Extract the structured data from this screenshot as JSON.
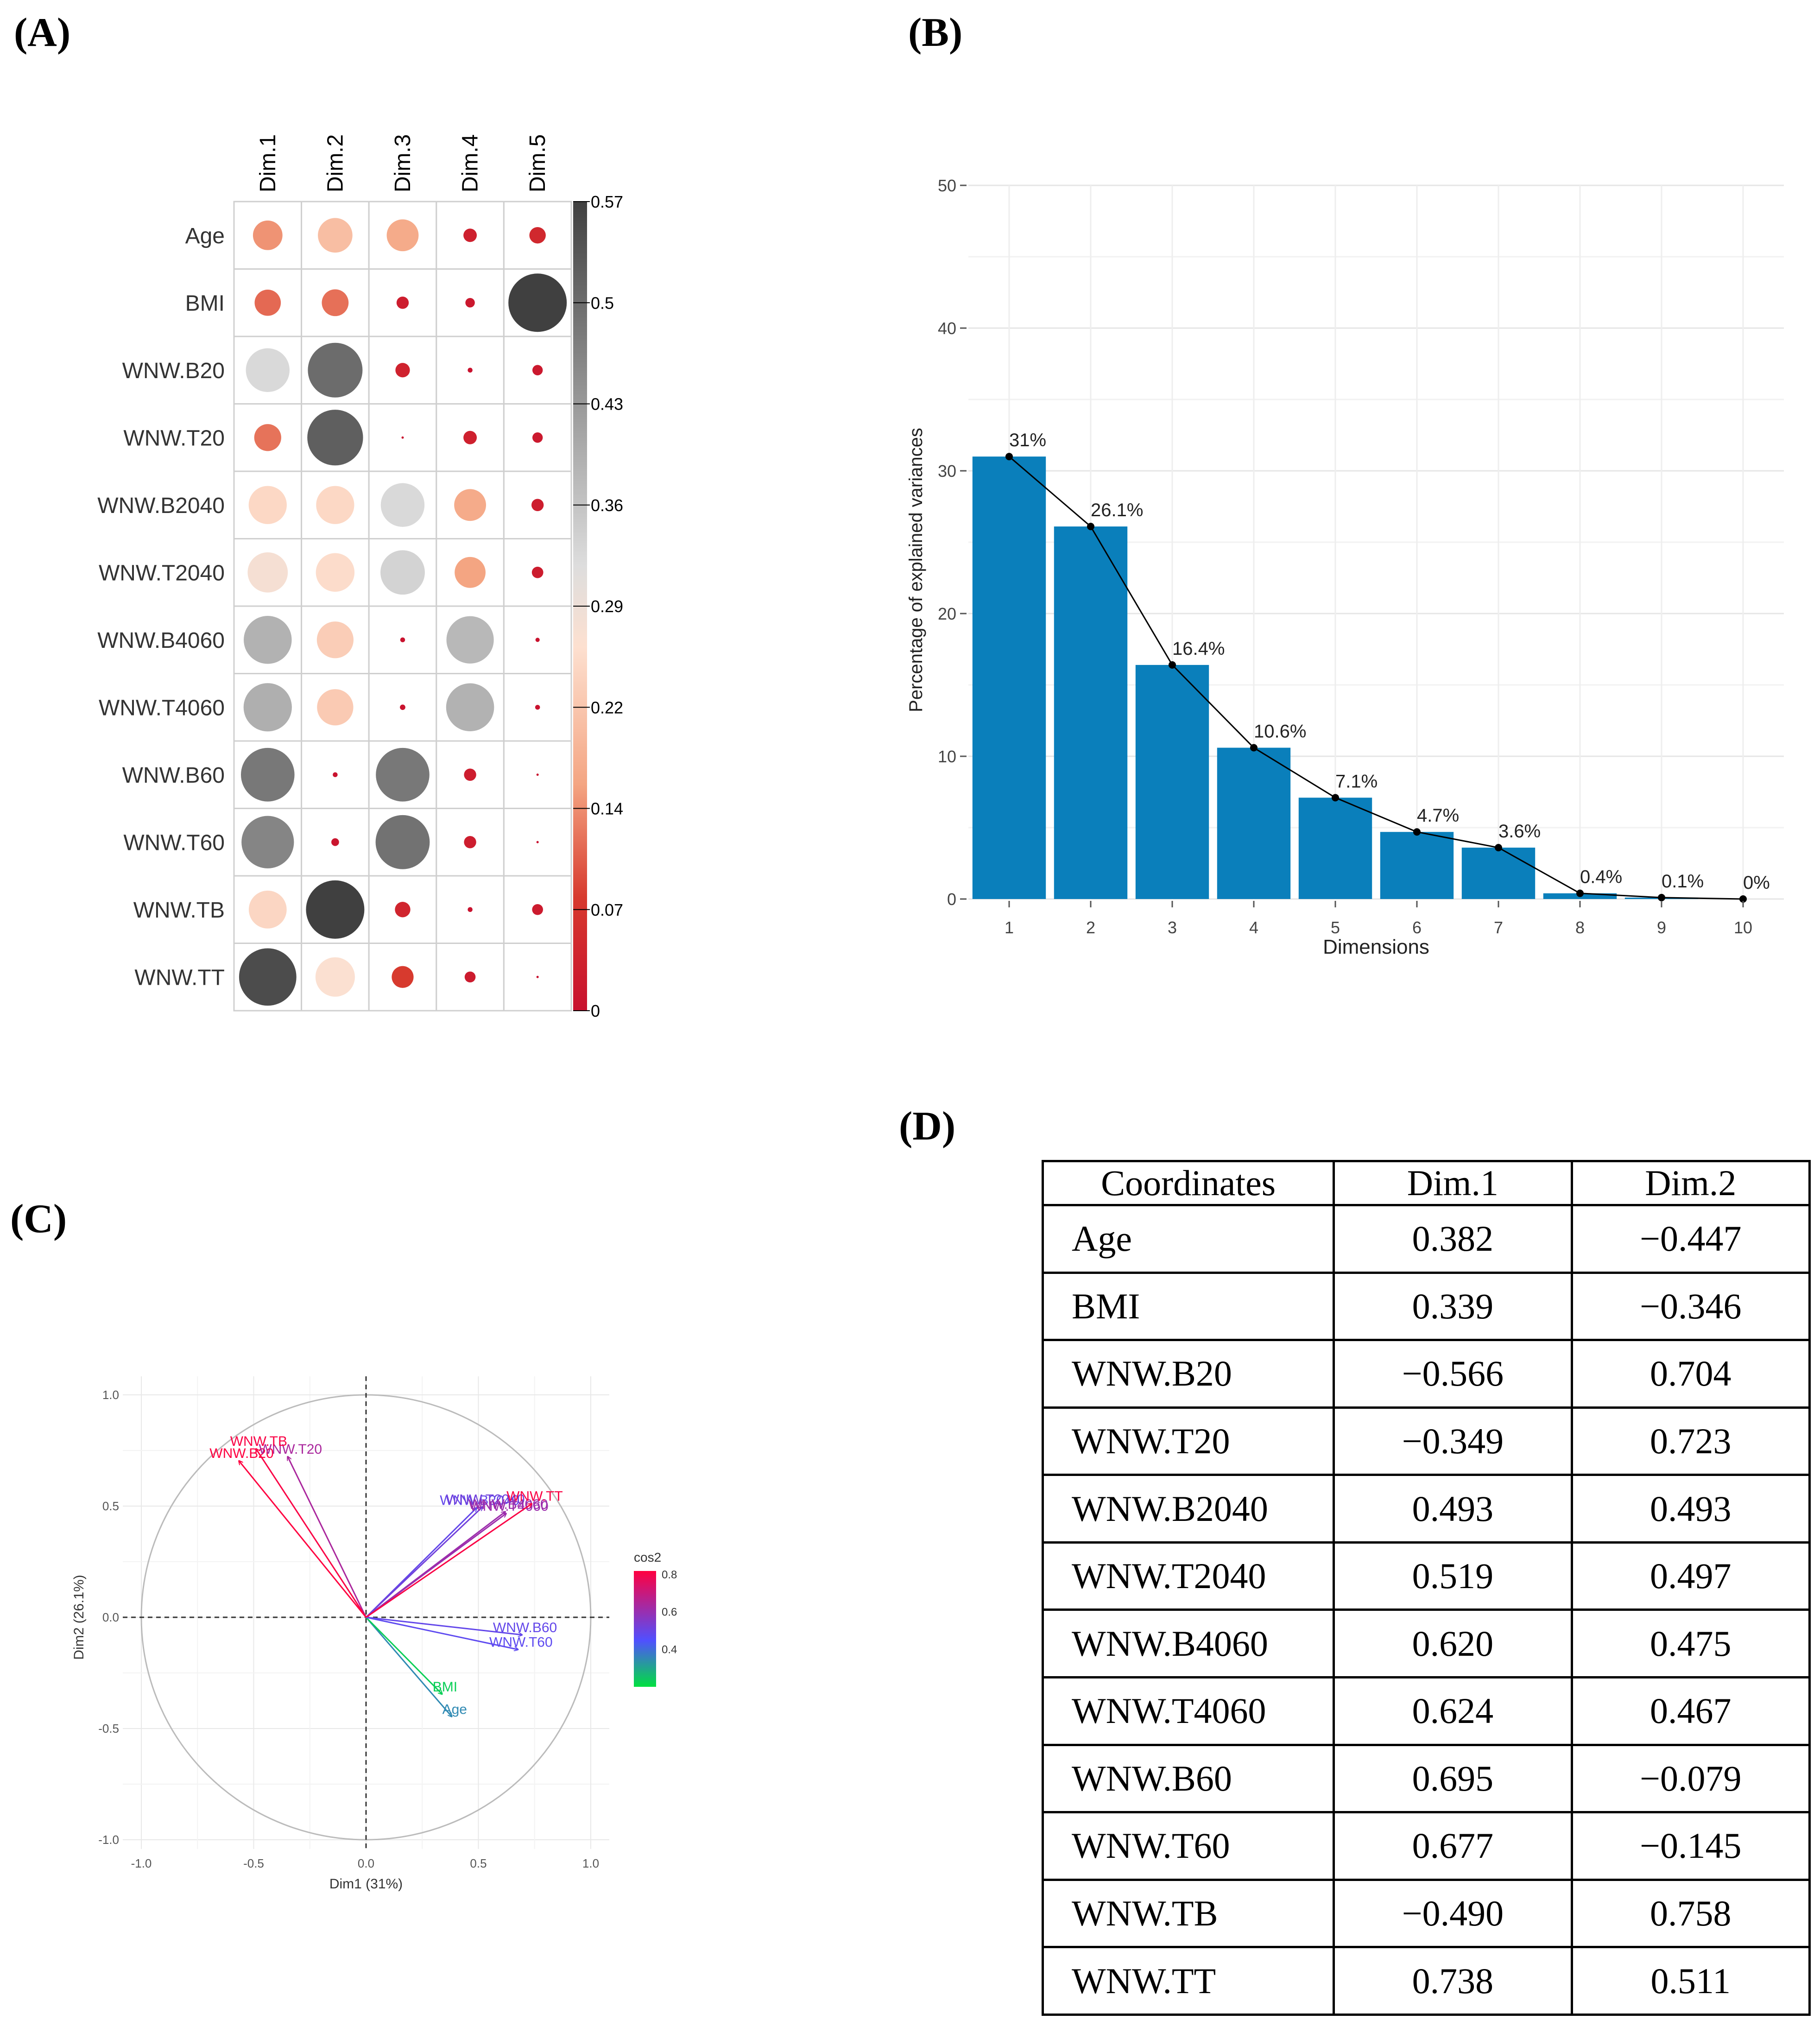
{
  "panels": {
    "a": "(A)",
    "b": "(B)",
    "c": "(C)",
    "d": "(D)"
  },
  "colors": {
    "bar": "#0a7fbb",
    "neg": "#c8102e",
    "legend_low": "#00e040",
    "legend_mid": "#5050ff",
    "legend_high": "#ff0040"
  },
  "chart_data": [
    {
      "type": "heatmap",
      "id": "A",
      "columns": [
        "Dim.1",
        "Dim.2",
        "Dim.3",
        "Dim.4",
        "Dim.5"
      ],
      "rows": [
        "Age",
        "BMI",
        "WNW.B20",
        "WNW.T20",
        "WNW.B2040",
        "WNW.T2040",
        "WNW.B4060",
        "WNW.T4060",
        "WNW.B60",
        "WNW.T60",
        "WNW.TB",
        "WNW.TT"
      ],
      "values": [
        [
          0.146,
          0.2,
          0.17,
          0.03,
          0.045
        ],
        [
          0.115,
          0.12,
          0.025,
          0.015,
          0.57
        ],
        [
          0.32,
          0.5,
          0.035,
          0.004,
          0.018
        ],
        [
          0.122,
          0.52,
          0.0,
          0.03,
          0.018
        ],
        [
          0.243,
          0.243,
          0.32,
          0.17,
          0.025
        ],
        [
          0.27,
          0.25,
          0.33,
          0.16,
          0.022
        ],
        [
          0.385,
          0.225,
          0.004,
          0.375,
          0.003
        ],
        [
          0.39,
          0.22,
          0.005,
          0.385,
          0.004
        ],
        [
          0.48,
          0.004,
          0.48,
          0.025,
          0.0
        ],
        [
          0.46,
          0.01,
          0.49,
          0.025,
          0.0
        ],
        [
          0.24,
          0.57,
          0.04,
          0.004,
          0.02
        ],
        [
          0.55,
          0.26,
          0.08,
          0.02,
          0.0
        ]
      ],
      "legend_ticks": [
        "0.57",
        "0.5",
        "0.43",
        "0.36",
        "0.29",
        "0.22",
        "0.14",
        "0.07",
        "0"
      ],
      "legend_range": [
        0,
        0.57
      ]
    },
    {
      "type": "bar",
      "id": "B",
      "categories": [
        "1",
        "2",
        "3",
        "4",
        "5",
        "6",
        "7",
        "8",
        "9",
        "10"
      ],
      "values": [
        31,
        26.1,
        16.4,
        10.6,
        7.1,
        4.7,
        3.6,
        0.4,
        0.1,
        0
      ],
      "labels": [
        "31%",
        "26.1%",
        "16.4%",
        "10.6%",
        "7.1%",
        "4.7%",
        "3.6%",
        "0.4%",
        "0.1%",
        "0%"
      ],
      "xlabel": "Dimensions",
      "ylabel": "Percentage of explained variances",
      "ylim": [
        0,
        50
      ],
      "yticks": [
        "0",
        "10",
        "20",
        "30",
        "40",
        "50"
      ],
      "grid": true
    },
    {
      "type": "scatter",
      "id": "C",
      "subtype": "pca-variable-arrows",
      "xlabel": "Dim1 (31%)",
      "ylabel": "Dim2 (26.1%)",
      "xlim": [
        -1.0,
        1.0
      ],
      "ylim": [
        -1.0,
        1.0
      ],
      "xticks": [
        "-1.0",
        "-0.5",
        "0.0",
        "0.5",
        "1.0"
      ],
      "yticks": [
        "-1.0",
        "-0.5",
        "0.0",
        "0.5",
        "1.0"
      ],
      "legend_title": "cos2",
      "legend_ticks": [
        "0.8",
        "0.6",
        "0.4"
      ],
      "variables": [
        {
          "name": "Age",
          "x": 0.382,
          "y": -0.447,
          "cos2": 0.35
        },
        {
          "name": "BMI",
          "x": 0.339,
          "y": -0.346,
          "cos2": 0.23
        },
        {
          "name": "WNW.B20",
          "x": -0.566,
          "y": 0.704,
          "cos2": 0.82
        },
        {
          "name": "WNW.T20",
          "x": -0.349,
          "y": 0.723,
          "cos2": 0.64
        },
        {
          "name": "WNW.B2040",
          "x": 0.493,
          "y": 0.493,
          "cos2": 0.49
        },
        {
          "name": "WNW.T2040",
          "x": 0.519,
          "y": 0.497,
          "cos2": 0.52
        },
        {
          "name": "WNW.B4060",
          "x": 0.62,
          "y": 0.475,
          "cos2": 0.61
        },
        {
          "name": "WNW.T4060",
          "x": 0.624,
          "y": 0.467,
          "cos2": 0.61
        },
        {
          "name": "WNW.B60",
          "x": 0.695,
          "y": -0.079,
          "cos2": 0.49
        },
        {
          "name": "WNW.T60",
          "x": 0.677,
          "y": -0.145,
          "cos2": 0.48
        },
        {
          "name": "WNW.TB",
          "x": -0.49,
          "y": 0.758,
          "cos2": 0.81
        },
        {
          "name": "WNW.TT",
          "x": 0.738,
          "y": 0.511,
          "cos2": 0.81
        }
      ]
    },
    {
      "type": "table",
      "id": "D",
      "header": [
        "Coordinates",
        "Dim.1",
        "Dim.2"
      ],
      "rows": [
        [
          "Age",
          "0.382",
          "−0.447"
        ],
        [
          "BMI",
          "0.339",
          "−0.346"
        ],
        [
          "WNW.B20",
          "−0.566",
          "0.704"
        ],
        [
          "WNW.T20",
          "−0.349",
          "0.723"
        ],
        [
          "WNW.B2040",
          "0.493",
          "0.493"
        ],
        [
          "WNW.T2040",
          "0.519",
          "0.497"
        ],
        [
          "WNW.B4060",
          "0.620",
          "0.475"
        ],
        [
          "WNW.T4060",
          "0.624",
          "0.467"
        ],
        [
          "WNW.B60",
          "0.695",
          "−0.079"
        ],
        [
          "WNW.T60",
          "0.677",
          "−0.145"
        ],
        [
          "WNW.TB",
          "−0.490",
          "0.758"
        ],
        [
          "WNW.TT",
          "0.738",
          "0.511"
        ]
      ]
    }
  ]
}
